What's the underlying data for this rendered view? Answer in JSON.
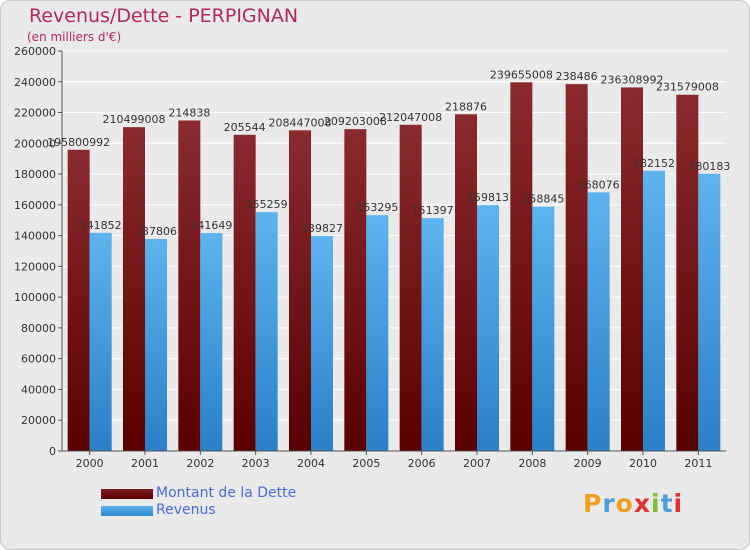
{
  "header": {
    "title": "Revenus/Dette - PERPIGNAN",
    "subtitle": "(en milliers d'€)"
  },
  "legend": {
    "dette_label": "Montant de la Dette",
    "revenus_label": "Revenus"
  },
  "logo": {
    "text": "Proxiti"
  },
  "colors": {
    "dette": "#6e0f14",
    "revenus": "#4aa3e6",
    "title": "#b5275a",
    "legend_text": "#4a6bd8",
    "background": "#eaeaea"
  },
  "chart_data": {
    "type": "bar",
    "title": "Revenus/Dette - PERPIGNAN",
    "subtitle": "(en milliers d'€)",
    "categories": [
      "2000",
      "2001",
      "2002",
      "2003",
      "2004",
      "2005",
      "2006",
      "2007",
      "2008",
      "2009",
      "2010",
      "2011"
    ],
    "series": [
      {
        "name": "Montant de la Dette",
        "values": [
          195800,
          210499,
          214838,
          205544,
          208447,
          209203,
          212047,
          218876,
          239655,
          238486,
          236308,
          231579
        ],
        "labels": [
          "195800992",
          "210499008",
          "214838",
          "205544",
          "208447008",
          "209203008",
          "212047008",
          "218876",
          "239655008",
          "238486",
          "236308992",
          "231579008"
        ]
      },
      {
        "name": "Revenus",
        "values": [
          141852,
          137806,
          141649,
          155259,
          139827,
          153295,
          151397,
          159813,
          158845,
          168076,
          182152,
          180183
        ],
        "labels": [
          "141852",
          "137806",
          "141649",
          "155259",
          "139827",
          "153295",
          "151397",
          "159813",
          "158845",
          "168076",
          "182152",
          "180183"
        ]
      }
    ],
    "yticks": [
      "0",
      "20000",
      "40000",
      "60000",
      "80000",
      "100000",
      "120000",
      "140000",
      "160000",
      "180000",
      "200000",
      "220000",
      "240000",
      "260000"
    ],
    "ylim": [
      0,
      260000
    ],
    "grid": true,
    "legend_position": "bottom-left"
  }
}
